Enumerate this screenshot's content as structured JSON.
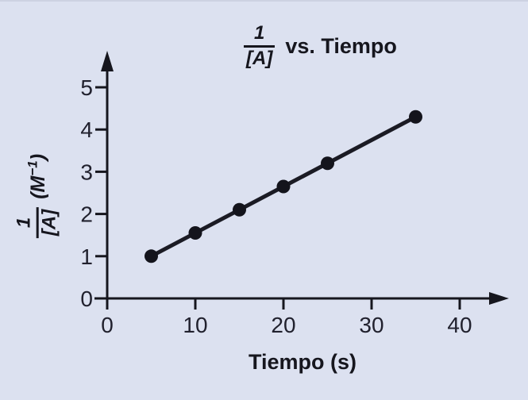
{
  "figure": {
    "background_color": "#dce1f0",
    "edge_color": "#cdd2e2",
    "text_color": "#16161e"
  },
  "chart_data": {
    "type": "line",
    "title": {
      "numerator": "1",
      "denominator": "[A]",
      "suffix": "vs. Tiempo"
    },
    "xlabel": "Tiempo (s)",
    "ylabel": {
      "numerator": "1",
      "denominator": "[A]",
      "unit_open": "(",
      "unit_symbol": "M",
      "unit_exponent": "−1",
      "unit_close": ")"
    },
    "x": [
      5,
      10,
      15,
      20,
      25,
      35
    ],
    "y": [
      1.0,
      1.55,
      2.1,
      2.65,
      3.2,
      4.3
    ],
    "x_ticks": [
      0,
      10,
      20,
      30,
      40
    ],
    "y_ticks": [
      0,
      1,
      2,
      3,
      4,
      5
    ],
    "xlim": [
      0,
      43.5
    ],
    "ylim": [
      0,
      5.6
    ],
    "grid": false,
    "legend": "none",
    "line_color": "#1b1b24",
    "point_color": "#14141c",
    "axis_color": "#16161e",
    "tick_label_color": "#21212e"
  }
}
